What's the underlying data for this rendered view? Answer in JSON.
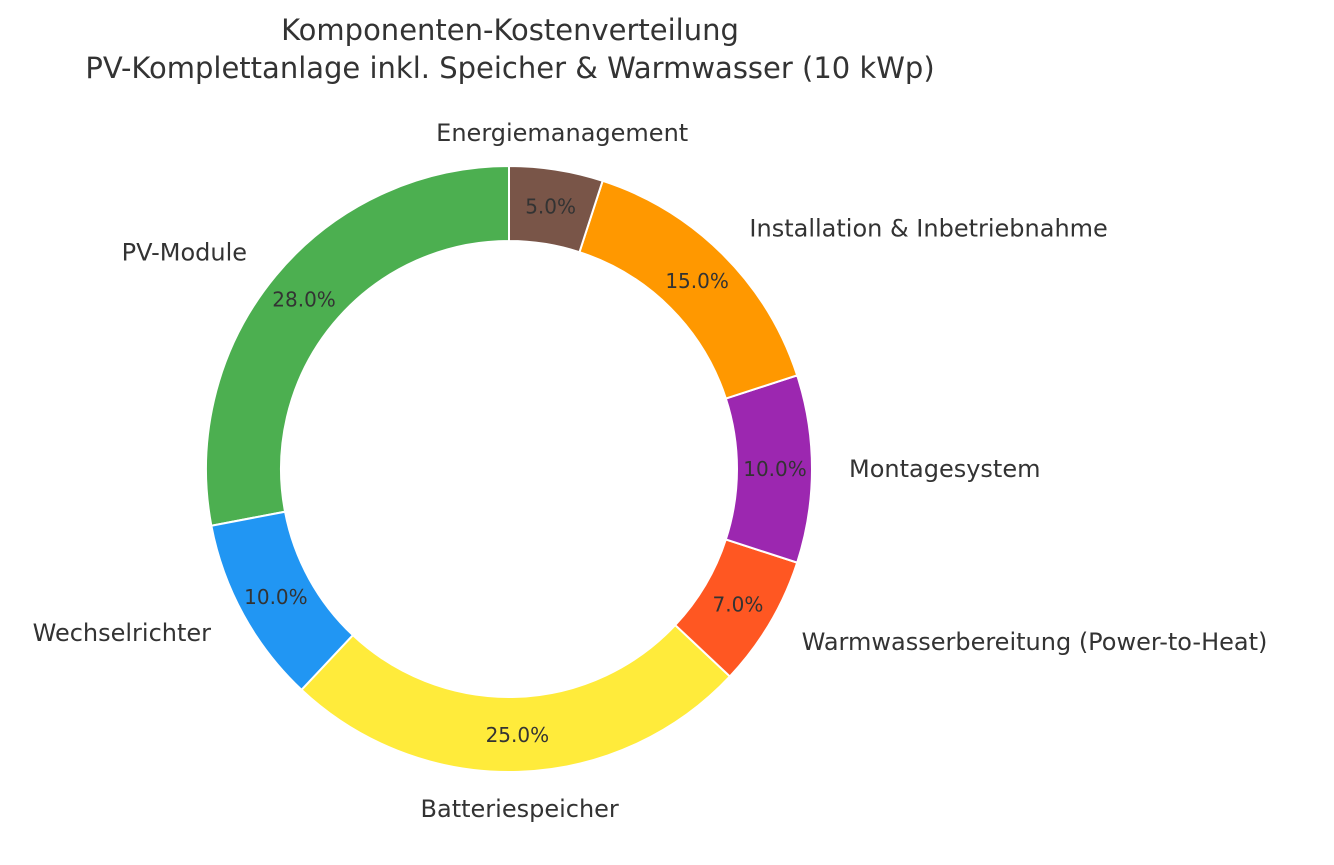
{
  "chart_data": {
    "type": "pie",
    "variant": "donut",
    "title": "Komponenten-Kostenverteilung",
    "subtitle": "PV-Komplettanlage inkl. Speicher & Warmwasser (10 kWp)",
    "start": "top",
    "direction": "counterclockwise",
    "slices": [
      {
        "label": "PV-Module",
        "value": 28.0,
        "pct_label": "28.0%",
        "color": "#4CAF50"
      },
      {
        "label": "Wechselrichter",
        "value": 10.0,
        "pct_label": "10.0%",
        "color": "#2196F3"
      },
      {
        "label": "Batteriespeicher",
        "value": 25.0,
        "pct_label": "25.0%",
        "color": "#FFEB3B"
      },
      {
        "label": "Warmwasserbereitung (Power-to-Heat)",
        "value": 7.0,
        "pct_label": "7.0%",
        "color": "#FF5722"
      },
      {
        "label": "Montagesystem",
        "value": 10.0,
        "pct_label": "10.0%",
        "color": "#9C27B0"
      },
      {
        "label": "Installation & Inbetriebnahme",
        "value": 15.0,
        "pct_label": "15.0%",
        "color": "#FF9800"
      },
      {
        "label": "Energiemanagement",
        "value": 5.0,
        "pct_label": "5.0%",
        "color": "#795548"
      }
    ]
  }
}
